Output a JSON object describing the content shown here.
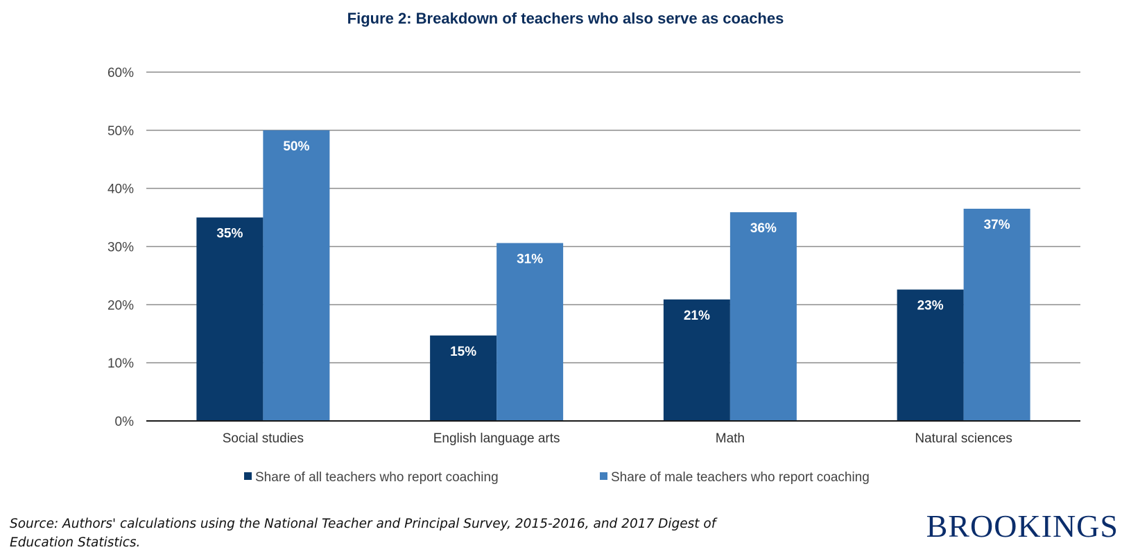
{
  "chart_data": {
    "type": "bar",
    "title": "Figure 2: Breakdown of teachers who also serve as coaches",
    "categories": [
      "Social studies",
      "English language arts",
      "Math",
      "Natural sciences"
    ],
    "series": [
      {
        "name": "Share of all teachers who report coaching",
        "values": [
          35,
          14.7,
          20.9,
          22.6
        ],
        "labels": [
          "35%",
          "15%",
          "21%",
          "23%"
        ],
        "color": "#0a3a6b"
      },
      {
        "name": "Share of male teachers who report coaching",
        "values": [
          50,
          30.6,
          35.9,
          36.5
        ],
        "labels": [
          "50%",
          "31%",
          "36%",
          "37%"
        ],
        "color": "#427fbd"
      }
    ],
    "y_ticks": [
      0,
      10,
      20,
      30,
      40,
      50,
      60
    ],
    "y_tick_labels": [
      "0%",
      "10%",
      "20%",
      "30%",
      "40%",
      "50%",
      "60%"
    ],
    "ylim": [
      0,
      60
    ],
    "xlabel": "",
    "ylabel": "",
    "grid": true,
    "legend_position": "bottom"
  },
  "source_note": "Source: Authors' calculations using the National Teacher and Principal Survey, 2015-2016, and 2017 Digest of Education Statistics.",
  "logo_text": "BROOKINGS",
  "colors": {
    "title": "#0b2d5c",
    "gridline": "#8c8c8c",
    "axis": "#1a1a1a",
    "logo": "#0b2d6b"
  }
}
